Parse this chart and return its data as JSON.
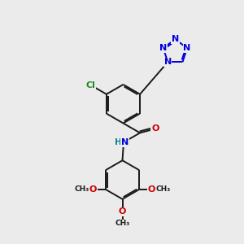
{
  "bg": "#ebebeb",
  "bc": "#1a1a1a",
  "bw": 1.4,
  "dbo": 0.055,
  "afs": 8.0,
  "colors": {
    "N": "#0000dd",
    "O": "#cc0000",
    "Cl": "#228B22",
    "C": "#1a1a1a"
  },
  "xlim": [
    0,
    10
  ],
  "ylim": [
    0,
    10
  ]
}
